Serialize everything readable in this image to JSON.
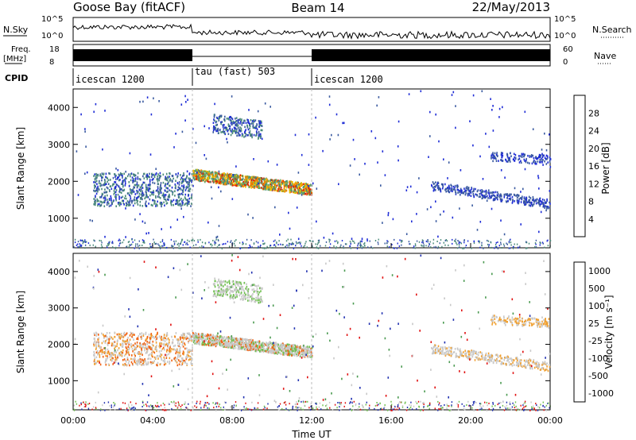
{
  "header": {
    "station": "Goose Bay (fitACF)",
    "beam": "Beam 14",
    "date": "22/May/2013"
  },
  "top_panels": {
    "nsky_label": "N.Sky",
    "nsky_ticks": [
      "10^5",
      "10^0"
    ],
    "nsearch_label": "N.Search",
    "nsearch_ticks": [
      "10^5",
      "10^0"
    ],
    "freq_label": "Freq.",
    "freq_unit": "[MHz]",
    "freq_ticks": [
      "18",
      "8"
    ],
    "nave_label": "Nave",
    "nave_ticks": [
      "60",
      "0"
    ],
    "cpid_label": "CPID",
    "cpid_segments": [
      {
        "label": "icescan 1200",
        "start_h": 0,
        "end_h": 6
      },
      {
        "label": "tau (fast) 503",
        "start_h": 6,
        "end_h": 12
      },
      {
        "label": "icescan 1200",
        "start_h": 12,
        "end_h": 24
      }
    ]
  },
  "chart_data": [
    {
      "type": "heatmap",
      "title": "",
      "xlabel": "",
      "ylabel": "Slant Range [km]",
      "xlim": [
        0,
        24
      ],
      "ylim": [
        200,
        4500
      ],
      "yticks": [
        "1000",
        "2000",
        "3000",
        "4000"
      ],
      "colorbar_label": "Power [dB]",
      "colorbar_ticks": [
        "4",
        "8",
        "12",
        "16",
        "20",
        "24",
        "28"
      ],
      "colorbar_colors": [
        "#1e2cd6",
        "#3a5aa0",
        "#4a8a7a",
        "#60a860",
        "#f0c000",
        "#f08a00",
        "#e02000"
      ]
    },
    {
      "type": "heatmap",
      "title": "",
      "xlabel": "Time UT",
      "ylabel": "Slant Range [km]",
      "xlim": [
        0,
        24
      ],
      "ylim": [
        200,
        4500
      ],
      "xticks": [
        "00:00",
        "04:00",
        "08:00",
        "12:00",
        "16:00",
        "20:00",
        "00:00"
      ],
      "yticks": [
        "1000",
        "2000",
        "3000",
        "4000"
      ],
      "colorbar_label": "Velocity [m s⁻¹]",
      "colorbar_ticks": [
        "1000",
        "500",
        "100",
        "25",
        "-25",
        "-100",
        "-500",
        "-1000"
      ],
      "colorbar_colors": [
        "#2030b0",
        "#3a6aa0",
        "#4a9a50",
        "#70c050",
        "#c8c8c8",
        "#f0a030",
        "#f06010",
        "#e01010"
      ]
    }
  ]
}
